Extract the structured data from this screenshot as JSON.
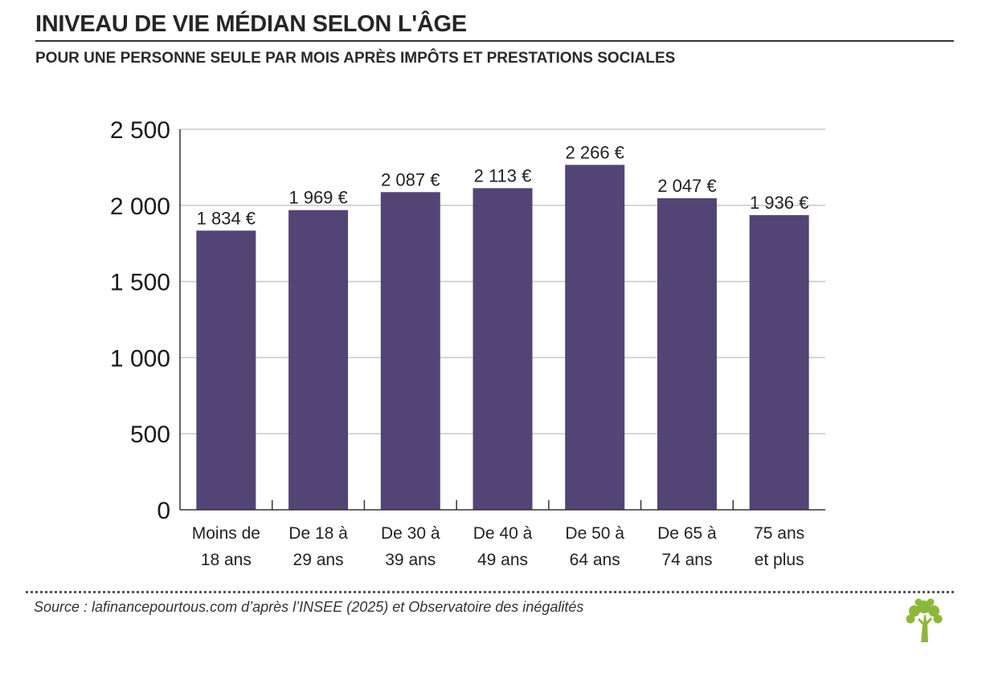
{
  "header": {
    "title": "INIVEAU DE VIE MÉDIAN SELON L'ÂGE",
    "subtitle": "POUR UNE PERSONNE SEULE PAR MOIS APRÈS IMPÔTS ET PRESTATIONS SOCIALES"
  },
  "footer": {
    "source": "Source : lafinancepourtous.com d’après l’INSEE (2025) et Observatoire des inégalités",
    "logo_icon": "tree-icon",
    "logo_color": "#8cb83a"
  },
  "chart_data": {
    "type": "bar",
    "title": "INIVEAU DE VIE MÉDIAN SELON L'ÂGE",
    "subtitle": "POUR UNE PERSONNE SEULE PAR MOIS APRÈS IMPÔTS ET PRESTATIONS SOCIALES",
    "categories": [
      [
        "Moins de",
        "18 ans"
      ],
      [
        "De 18 à",
        "29 ans"
      ],
      [
        "De 30 à",
        "39 ans"
      ],
      [
        "De 40 à",
        "49 ans"
      ],
      [
        "De 50 à",
        "64 ans"
      ],
      [
        "De 65 à",
        "74 ans"
      ],
      [
        "75 ans",
        "et plus"
      ]
    ],
    "values": [
      1834,
      1969,
      2087,
      2113,
      2266,
      2047,
      1936
    ],
    "data_labels": [
      "1 834 €",
      "1 969 €",
      "2 087 €",
      "2 113 €",
      "2 266 €",
      "2 047 €",
      "1 936 €"
    ],
    "yticks": [
      0,
      500,
      1000,
      1500,
      2000,
      2500
    ],
    "ytick_labels": [
      "0",
      "500",
      "1 000",
      "1 500",
      "2 000",
      "2 500"
    ],
    "ylim": [
      0,
      2500
    ],
    "xlabel": "",
    "ylabel": "",
    "grid": true,
    "legend": "none",
    "bar_color": "#524575"
  }
}
